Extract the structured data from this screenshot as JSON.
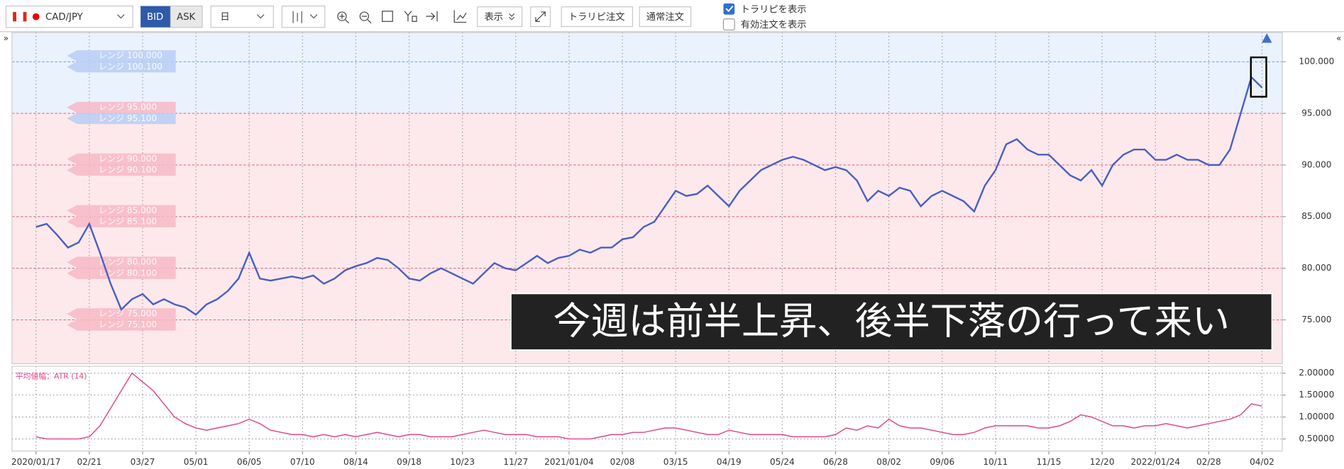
{
  "toolbar": {
    "symbol": "CAD/JPY",
    "bid": "BID",
    "ask": "ASK",
    "period": "日",
    "display": "表示",
    "trarip_order": "トラリピ注文",
    "normal_order": "通常注文",
    "show_trarip": "トラリピを表示",
    "show_orders": "有効注文を表示"
  },
  "annotation": "今週は前半上昇、後半下落の行って来い",
  "range_labels": [
    "レンジ 100.000",
    "レンジ 100.100",
    "レンジ 95.000",
    "レンジ 95.100",
    "レンジ 90.000",
    "レンジ 90.100",
    "レンジ 85.000",
    "レンジ 85.100",
    "レンジ 80.000",
    "レンジ 80.100",
    "レンジ 75.000",
    "レンジ 75.100"
  ],
  "chart_data": [
    {
      "type": "line",
      "color": "#4a5fc1",
      "values": [
        84.0,
        84.3,
        83.2,
        82.0,
        82.5,
        84.3,
        81.5,
        78.5,
        76.0,
        77.0,
        77.5,
        76.5,
        77.0,
        76.5,
        76.2,
        75.5,
        76.5,
        77.0,
        77.8,
        79.0,
        81.5,
        79.0,
        78.8,
        79.0,
        79.2,
        79.0,
        79.3,
        78.5,
        79.0,
        79.8,
        80.2,
        80.5,
        81.0,
        80.8,
        80.0,
        79.0,
        78.8,
        79.5,
        80.0,
        79.5,
        79.0,
        78.5,
        79.5,
        80.5,
        80.0,
        79.8,
        80.5,
        81.2,
        80.5,
        81.0,
        81.2,
        81.8,
        81.5,
        82.0,
        82.0,
        82.8,
        83.0,
        84.0,
        84.5,
        86.0,
        87.5,
        87.0,
        87.2,
        88.0,
        87.0,
        86.0,
        87.5,
        88.5,
        89.5,
        90.0,
        90.5,
        90.8,
        90.5,
        90.0,
        89.5,
        89.8,
        89.5,
        88.5,
        86.5,
        87.5,
        87.0,
        87.8,
        87.5,
        86.0,
        87.0,
        87.5,
        87.0,
        86.5,
        85.5,
        88.0,
        89.5,
        92.0,
        92.5,
        91.5,
        91.0,
        91.0,
        90.0,
        89.0,
        88.5,
        89.5,
        88.0,
        90.0,
        91.0,
        91.5,
        91.5,
        90.5,
        90.5,
        91.0,
        90.5,
        90.5,
        90.0,
        90.0,
        91.5,
        95.0,
        98.5,
        97.5
      ],
      "xlim": [
        -2.25,
        116.9
      ],
      "ylim": [
        70.75,
        102.83
      ],
      "yticks": [
        {
          "value": 100,
          "label": "100.000"
        },
        {
          "value": 95,
          "label": "95.000"
        },
        {
          "value": 90,
          "label": "90.000"
        },
        {
          "value": 85,
          "label": "85.000"
        },
        {
          "value": 80,
          "label": "80.000"
        },
        {
          "value": 75,
          "label": "75.000"
        }
      ]
    },
    {
      "type": "line",
      "title": "平均値幅：ATR (14)",
      "color": "#e0458a",
      "values": [
        0.55,
        0.5,
        0.5,
        0.5,
        0.5,
        0.55,
        0.8,
        1.2,
        1.6,
        2.0,
        1.8,
        1.6,
        1.3,
        1.0,
        0.85,
        0.75,
        0.7,
        0.75,
        0.8,
        0.85,
        0.95,
        0.85,
        0.7,
        0.65,
        0.6,
        0.6,
        0.55,
        0.6,
        0.55,
        0.6,
        0.55,
        0.6,
        0.65,
        0.6,
        0.55,
        0.6,
        0.6,
        0.55,
        0.55,
        0.55,
        0.6,
        0.65,
        0.7,
        0.65,
        0.6,
        0.6,
        0.6,
        0.55,
        0.55,
        0.55,
        0.5,
        0.5,
        0.5,
        0.55,
        0.6,
        0.6,
        0.65,
        0.65,
        0.7,
        0.75,
        0.75,
        0.7,
        0.65,
        0.6,
        0.6,
        0.7,
        0.65,
        0.6,
        0.6,
        0.6,
        0.6,
        0.55,
        0.55,
        0.55,
        0.55,
        0.6,
        0.75,
        0.7,
        0.8,
        0.75,
        0.95,
        0.8,
        0.75,
        0.75,
        0.7,
        0.65,
        0.6,
        0.6,
        0.65,
        0.75,
        0.8,
        0.8,
        0.8,
        0.8,
        0.75,
        0.75,
        0.8,
        0.9,
        1.05,
        1.0,
        0.9,
        0.8,
        0.8,
        0.75,
        0.8,
        0.8,
        0.85,
        0.8,
        0.75,
        0.8,
        0.85,
        0.9,
        0.95,
        1.05,
        1.3,
        1.25
      ],
      "xlim": [
        -2.25,
        116.9
      ],
      "ylim": [
        0.225,
        2.157
      ],
      "yticks": [
        {
          "value": 2,
          "label": "2.00000"
        },
        {
          "value": 1.5,
          "label": "1.50000"
        },
        {
          "value": 1,
          "label": "1.00000"
        },
        {
          "value": 0.5,
          "label": "0.50000"
        }
      ],
      "xticks": [
        {
          "value": 0,
          "label": "2020/01/17"
        },
        {
          "value": 5,
          "label": "02/21"
        },
        {
          "value": 10,
          "label": "03/27"
        },
        {
          "value": 15,
          "label": "05/01"
        },
        {
          "value": 20,
          "label": "06/05"
        },
        {
          "value": 25,
          "label": "07/10"
        },
        {
          "value": 30,
          "label": "08/14"
        },
        {
          "value": 35,
          "label": "09/18"
        },
        {
          "value": 40,
          "label": "10/23"
        },
        {
          "value": 45,
          "label": "11/27"
        },
        {
          "value": 50,
          "label": "2021/01/04"
        },
        {
          "value": 55,
          "label": "02/08"
        },
        {
          "value": 60,
          "label": "03/15"
        },
        {
          "value": 65,
          "label": "04/19"
        },
        {
          "value": 70,
          "label": "05/24"
        },
        {
          "value": 75,
          "label": "06/28"
        },
        {
          "value": 80,
          "label": "08/02"
        },
        {
          "value": 85,
          "label": "09/06"
        },
        {
          "value": 90,
          "label": "10/11"
        },
        {
          "value": 95,
          "label": "11/15"
        },
        {
          "value": 100,
          "label": "12/20"
        },
        {
          "value": 105,
          "label": "2022/01/24"
        },
        {
          "value": 110,
          "label": "02/28"
        },
        {
          "value": 115,
          "label": "04/02"
        }
      ]
    }
  ]
}
